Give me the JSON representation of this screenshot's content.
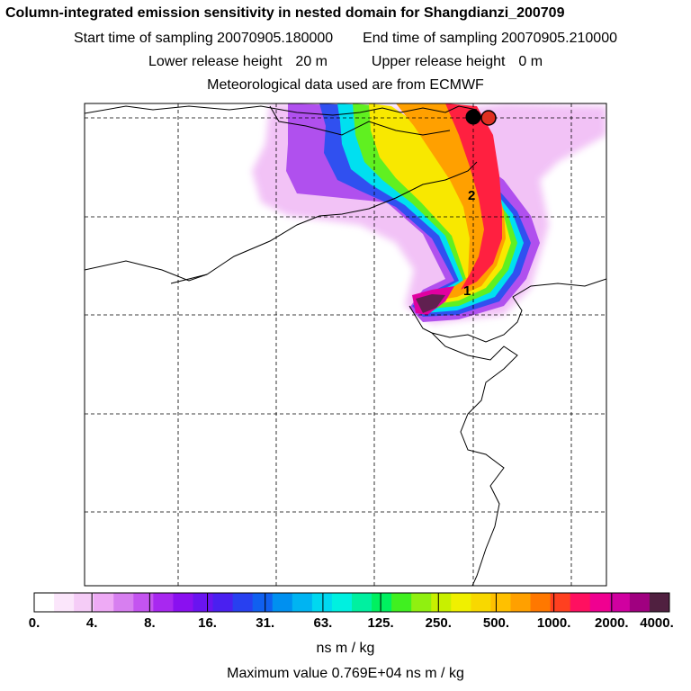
{
  "title": "Column-integrated emission sensitivity in nested domain for Shangdianzi_200709",
  "sampling": {
    "start_label": "Start time of sampling",
    "start_value": "20070905.180000",
    "end_label": "End time of sampling",
    "end_value": "20070905.210000"
  },
  "release": {
    "lower_label": "Lower release height",
    "lower_value": "20 m",
    "upper_label": "Upper release height",
    "upper_value": "0 m"
  },
  "met_text": "Meteorological data used are from ECMWF",
  "colorbar": {
    "ticks": [
      "0.",
      "4.",
      "8.",
      "16.",
      "31.",
      "63.",
      "125.",
      "250.",
      "500.",
      "1000.",
      "2000.",
      "4000."
    ],
    "colors": [
      "#ffffff",
      "#fbe6fb",
      "#f5ccf7",
      "#eeaaf5",
      "#d77ff0",
      "#c454f0",
      "#a828f0",
      "#8a10f0",
      "#6a14f0",
      "#4a20f0",
      "#2840f0",
      "#1060f0",
      "#0090f0",
      "#00b4f2",
      "#00d8f0",
      "#00f0e0",
      "#00f0a0",
      "#00f060",
      "#40f020",
      "#90f010",
      "#c8f000",
      "#f0f000",
      "#f8d800",
      "#ffc000",
      "#ffa000",
      "#ff7800",
      "#ff4020",
      "#ff1060",
      "#f00090",
      "#d000a0",
      "#a00080",
      "#502040"
    ],
    "units": "ns m / kg"
  },
  "max_text": "Maximum value  0.769E+04 ns m / kg",
  "map": {
    "markers": [
      {
        "label": "2"
      },
      {
        "label": "1"
      }
    ],
    "receptor_colors": [
      "#000000",
      "#e03020"
    ]
  }
}
